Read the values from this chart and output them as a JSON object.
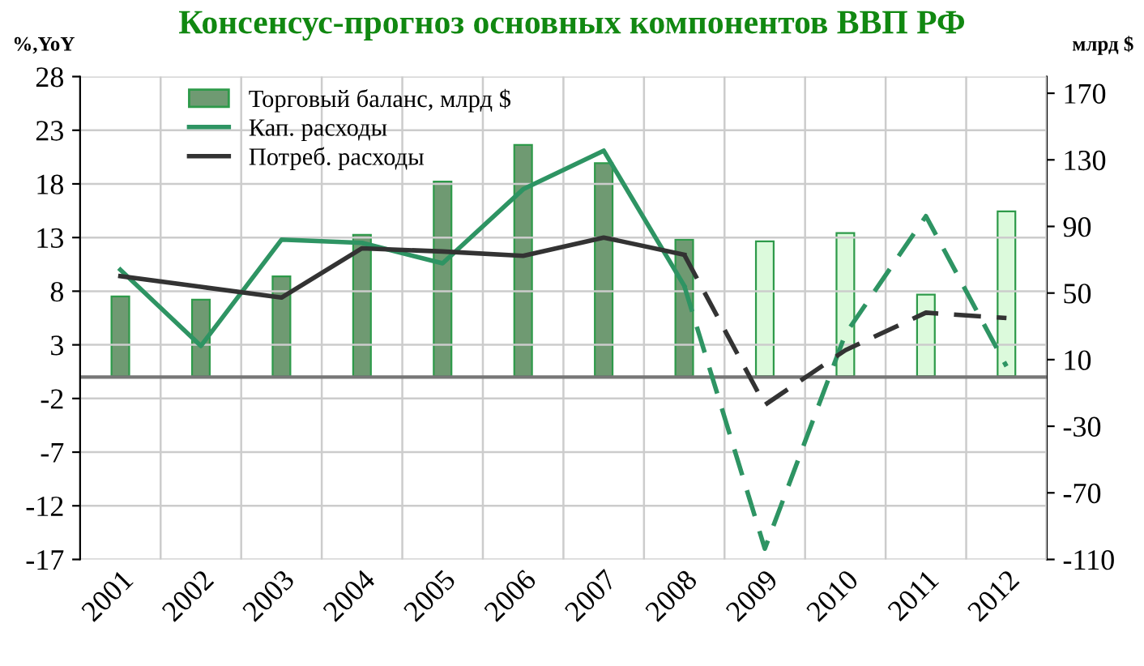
{
  "chart_data": {
    "type": "bar",
    "title": "Консенсус-прогноз основных компонентов ВВП РФ",
    "ylabel": "%,YoY",
    "y2label": "млрд $",
    "categories": [
      "2001",
      "2002",
      "2003",
      "2004",
      "2005",
      "2006",
      "2007",
      "2008",
      "2009",
      "2010",
      "2011",
      "2012"
    ],
    "series": [
      {
        "name": "Торговый баланс, млрд $",
        "axis": "y2",
        "color": "#6f9a72",
        "colors": [
          "#6f9a72",
          "#6f9a72",
          "#6f9a72",
          "#6f9a72",
          "#6f9a72",
          "#6f9a72",
          "#6f9a72",
          "#6f9a72",
          "#dcfadc",
          "#dcfadc",
          "#dcfadc",
          "#dcfadc"
        ],
        "values": [
          48,
          46,
          60,
          85,
          117,
          139,
          128,
          82,
          81,
          86,
          49,
          99
        ]
      },
      {
        "name": "Кап. расходы",
        "type": "line",
        "color": "#2e9463",
        "line_style": "solid",
        "values": [
          10.0,
          2.9,
          12.8,
          12.5,
          10.6,
          17.5,
          21.1,
          8.5,
          null,
          null,
          null,
          null
        ]
      },
      {
        "type": "line",
        "color": "#2e9463",
        "line_style": "dashed",
        "values": [
          null,
          null,
          null,
          null,
          null,
          null,
          null,
          8.5,
          -16,
          4,
          15,
          1
        ]
      },
      {
        "name": "Потреб. расходы",
        "type": "line",
        "color": "#333333",
        "line_style": "solid",
        "values": [
          9.4,
          8.4,
          7.4,
          12,
          11.7,
          11.3,
          13,
          11.4,
          null,
          null,
          null,
          null
        ]
      },
      {
        "type": "line",
        "color": "#333333",
        "line_style": "dashed",
        "values": [
          null,
          null,
          null,
          null,
          null,
          null,
          null,
          11.4,
          -2.6,
          2.5,
          6,
          5.5
        ]
      }
    ],
    "ylim": [
      -17,
      28
    ],
    "yticks": [
      28,
      23,
      18,
      13,
      8,
      3,
      -2,
      -7,
      -12,
      -17
    ],
    "y2lim": [
      -110,
      180
    ],
    "y2ticks": [
      170,
      130,
      90,
      50,
      10,
      -30,
      -70,
      -110
    ],
    "grid": true,
    "legend": "top left"
  }
}
